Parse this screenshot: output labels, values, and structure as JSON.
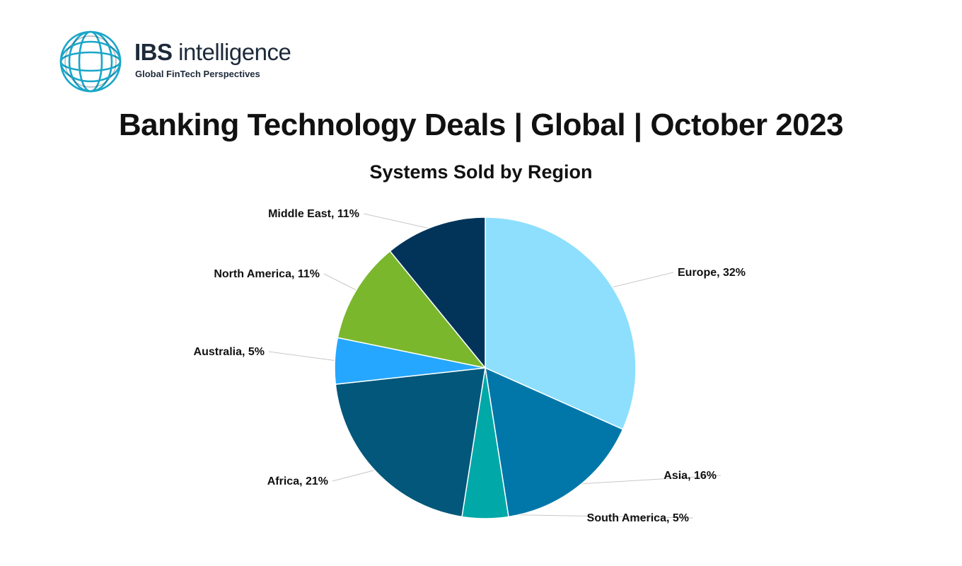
{
  "brand": {
    "name_bold": "IBS",
    "name_rest": " intelligence",
    "tagline": "Global FinTech Perspectives",
    "icon": "globe-rings-icon",
    "color": "#1aa6c9"
  },
  "chart_data": {
    "type": "pie",
    "title": "Banking Technology Deals | Global | October 2023",
    "subtitle": "Systems Sold by Region",
    "start": "12 o'clock",
    "direction": "clockwise",
    "labels_style": "outside with leader lines",
    "slices": [
      {
        "label": "Europe",
        "value": 32,
        "display": "Europe, 32%",
        "color": "#8ddffd"
      },
      {
        "label": "Asia",
        "value": 16,
        "display": "Asia, 16%",
        "color": "#0077a8"
      },
      {
        "label": "South America",
        "value": 5,
        "display": "South America, 5%",
        "color": "#00a8a8"
      },
      {
        "label": "Africa",
        "value": 21,
        "display": "Africa, 21%",
        "color": "#02577a"
      },
      {
        "label": "Australia",
        "value": 5,
        "display": "Australia, 5%",
        "color": "#26a7ff"
      },
      {
        "label": "North America",
        "value": 11,
        "display": "North America, 11%",
        "color": "#7ab72d"
      },
      {
        "label": "Middle East",
        "value": 11,
        "display": "Middle East, 11%",
        "color": "#02345a"
      }
    ]
  }
}
